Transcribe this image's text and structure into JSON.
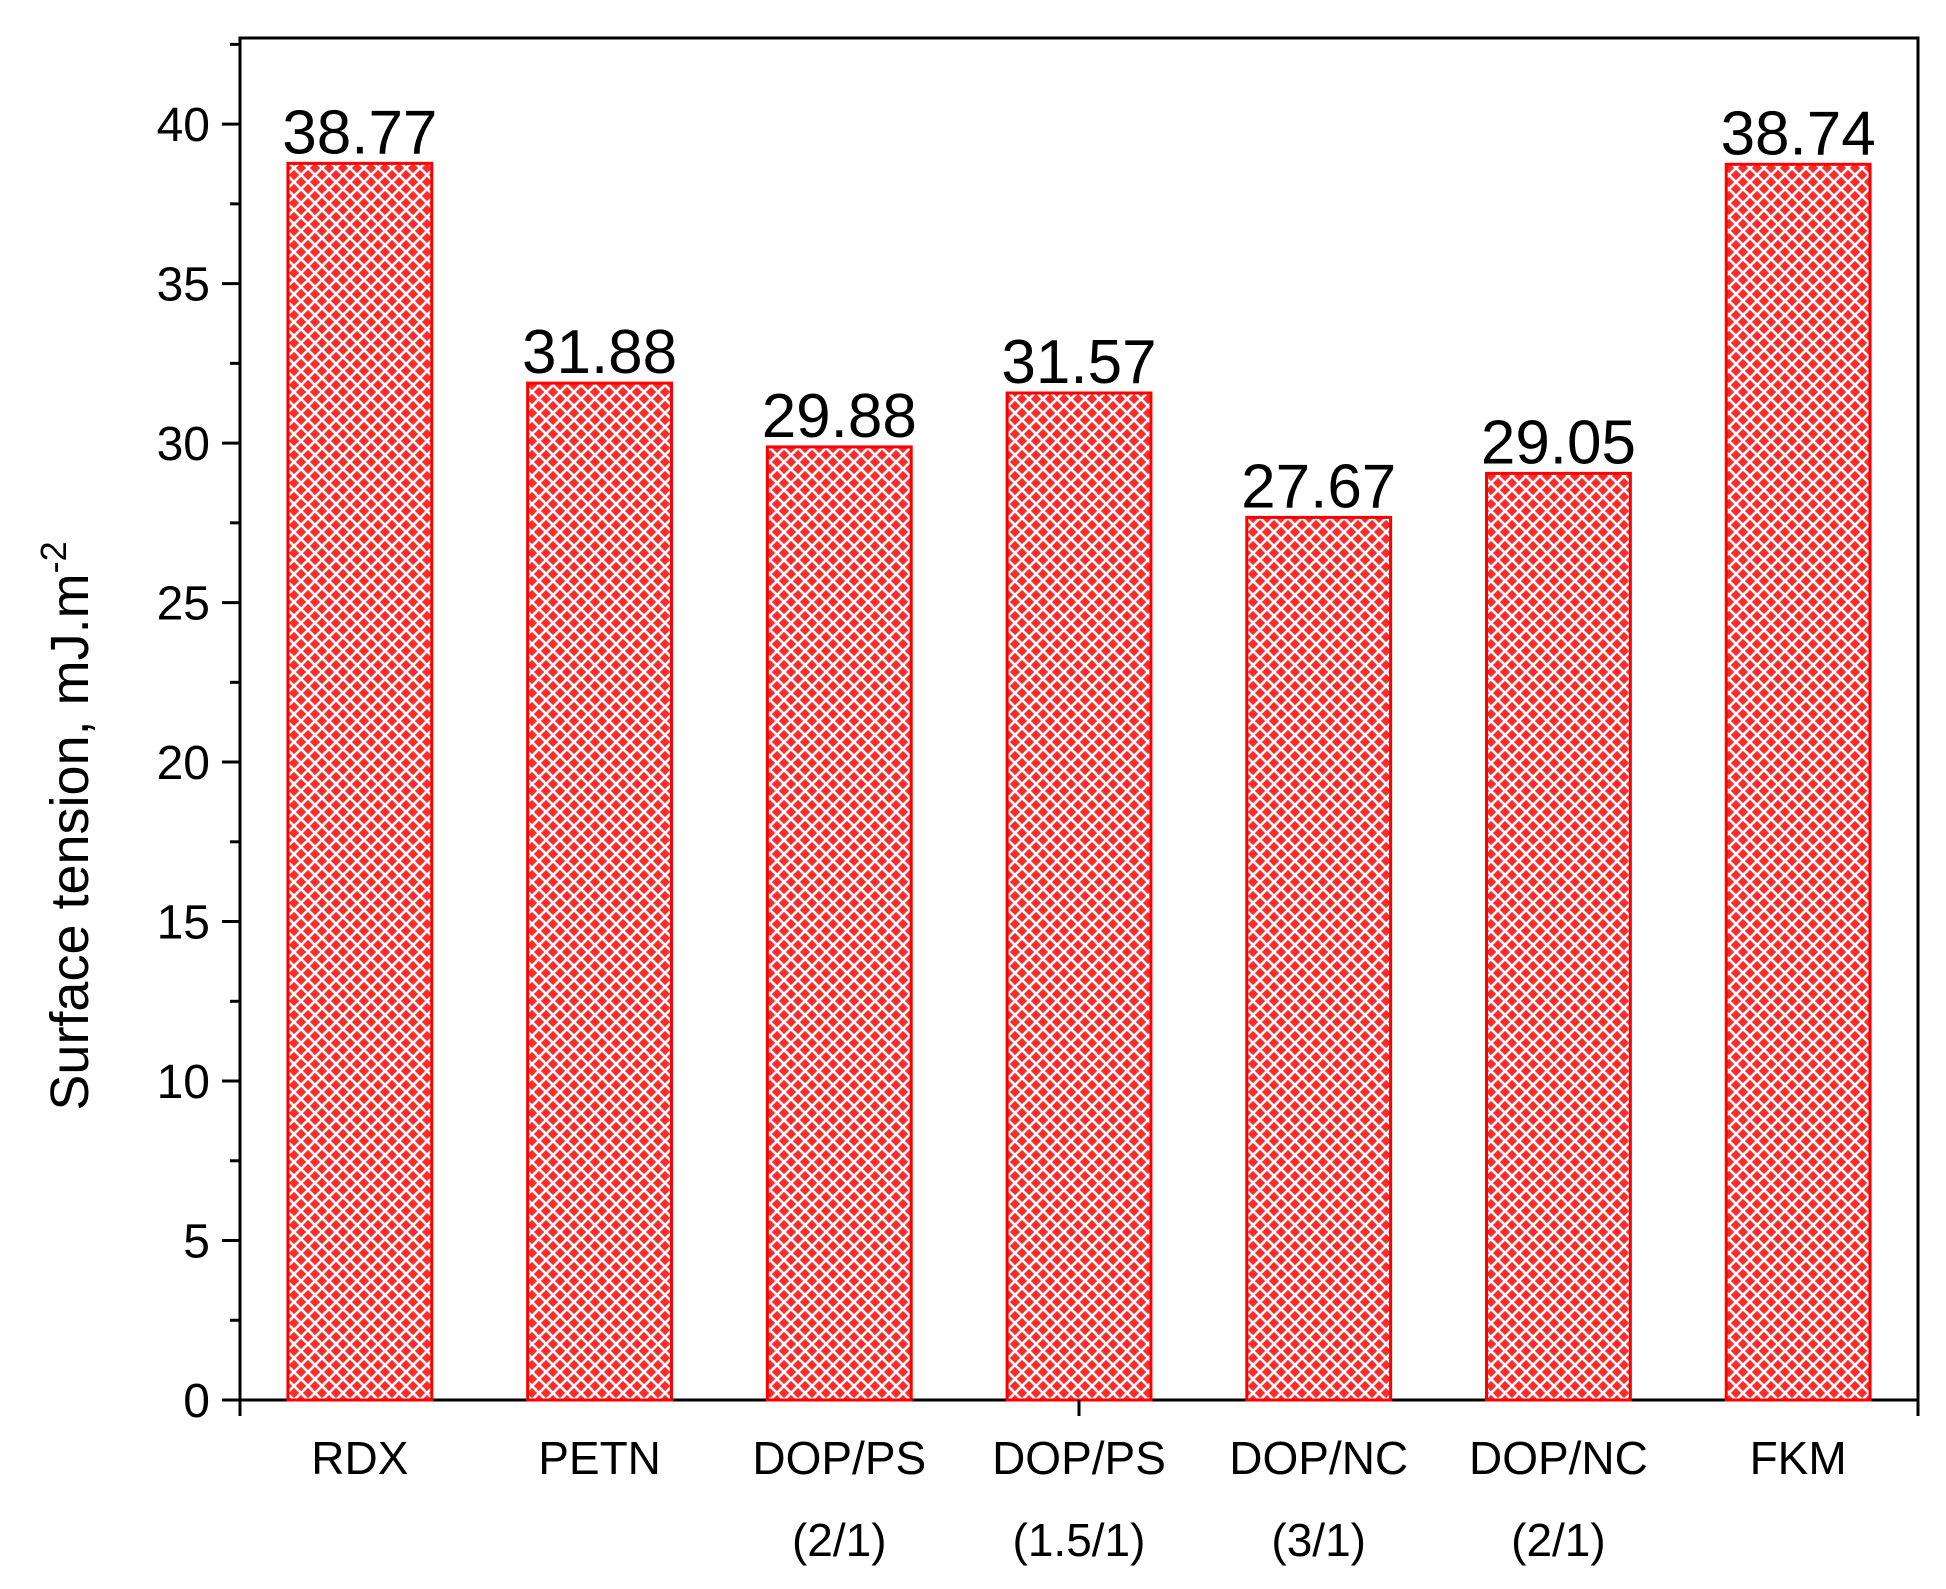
{
  "chart_data": {
    "type": "bar",
    "categories": [
      [
        "RDX"
      ],
      [
        "PETN"
      ],
      [
        "DOP/PS",
        "(2/1)"
      ],
      [
        "DOP/PS",
        "(1.5/1)"
      ],
      [
        "DOP/NC",
        "(3/1)"
      ],
      [
        "DOP/NC",
        "(2/1)"
      ],
      [
        "FKM"
      ]
    ],
    "values": [
      38.77,
      31.88,
      29.88,
      31.57,
      27.67,
      29.05,
      38.74
    ],
    "value_labels": [
      "38.77",
      "31.88",
      "29.88",
      "31.57",
      "27.67",
      "29.05",
      "38.74"
    ],
    "ylabel": "Surface tension, mJ.m",
    "ylabel_superscript": "-2",
    "xlabel": "",
    "title": "",
    "ylim": [
      0,
      42.7
    ],
    "yticks": [
      0,
      5,
      10,
      15,
      20,
      25,
      30,
      35,
      40
    ],
    "ytick_labels": [
      "0",
      "5",
      "10",
      "15",
      "20",
      "25",
      "30",
      "35",
      "40"
    ],
    "grid": false,
    "legend": "none",
    "colors": {
      "bar_fill": "#ff2a2a",
      "bar_hatch": "#ffffff",
      "bar_edge": "#ff0000",
      "axis": "#000000"
    },
    "pattern": "crosshatch"
  }
}
